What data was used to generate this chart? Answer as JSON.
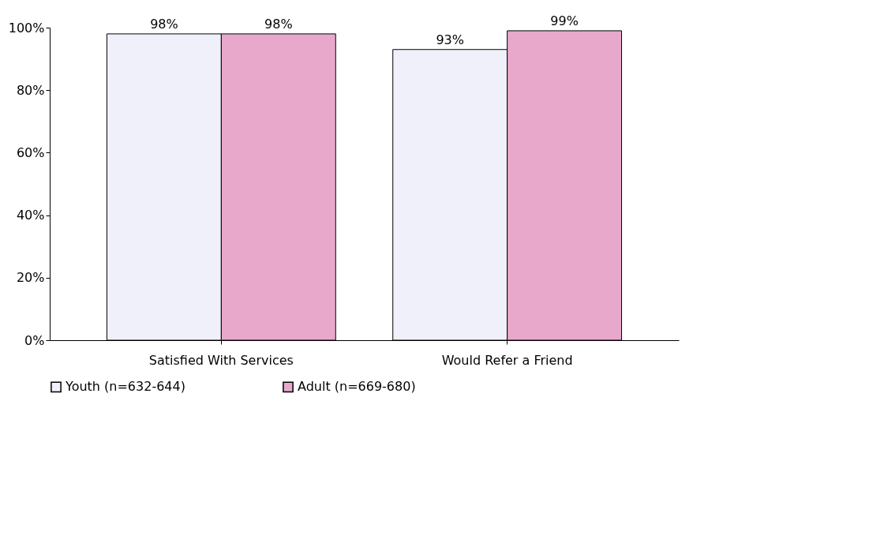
{
  "chart_data": {
    "type": "bar",
    "categories": [
      "Satisfied With Services",
      "Would Refer a Friend"
    ],
    "series": [
      {
        "name": "Youth (n=632-644)",
        "color": "#f0f0fa",
        "values": [
          98,
          93
        ]
      },
      {
        "name": "Adult (n=669-680)",
        "color": "#e8a8cc",
        "values": [
          98,
          99
        ]
      }
    ],
    "ylim": [
      0,
      100
    ],
    "yticks": [
      {
        "value": 0,
        "label": "0%"
      },
      {
        "value": 20,
        "label": "20%"
      },
      {
        "value": 40,
        "label": "40%"
      },
      {
        "value": 60,
        "label": "60%"
      },
      {
        "value": 80,
        "label": "80%"
      },
      {
        "value": 100,
        "label": "100%"
      }
    ],
    "value_labels": [
      [
        "98%",
        "93%"
      ],
      [
        "98%",
        "99%"
      ]
    ],
    "legend": "bottom",
    "grid": false
  }
}
